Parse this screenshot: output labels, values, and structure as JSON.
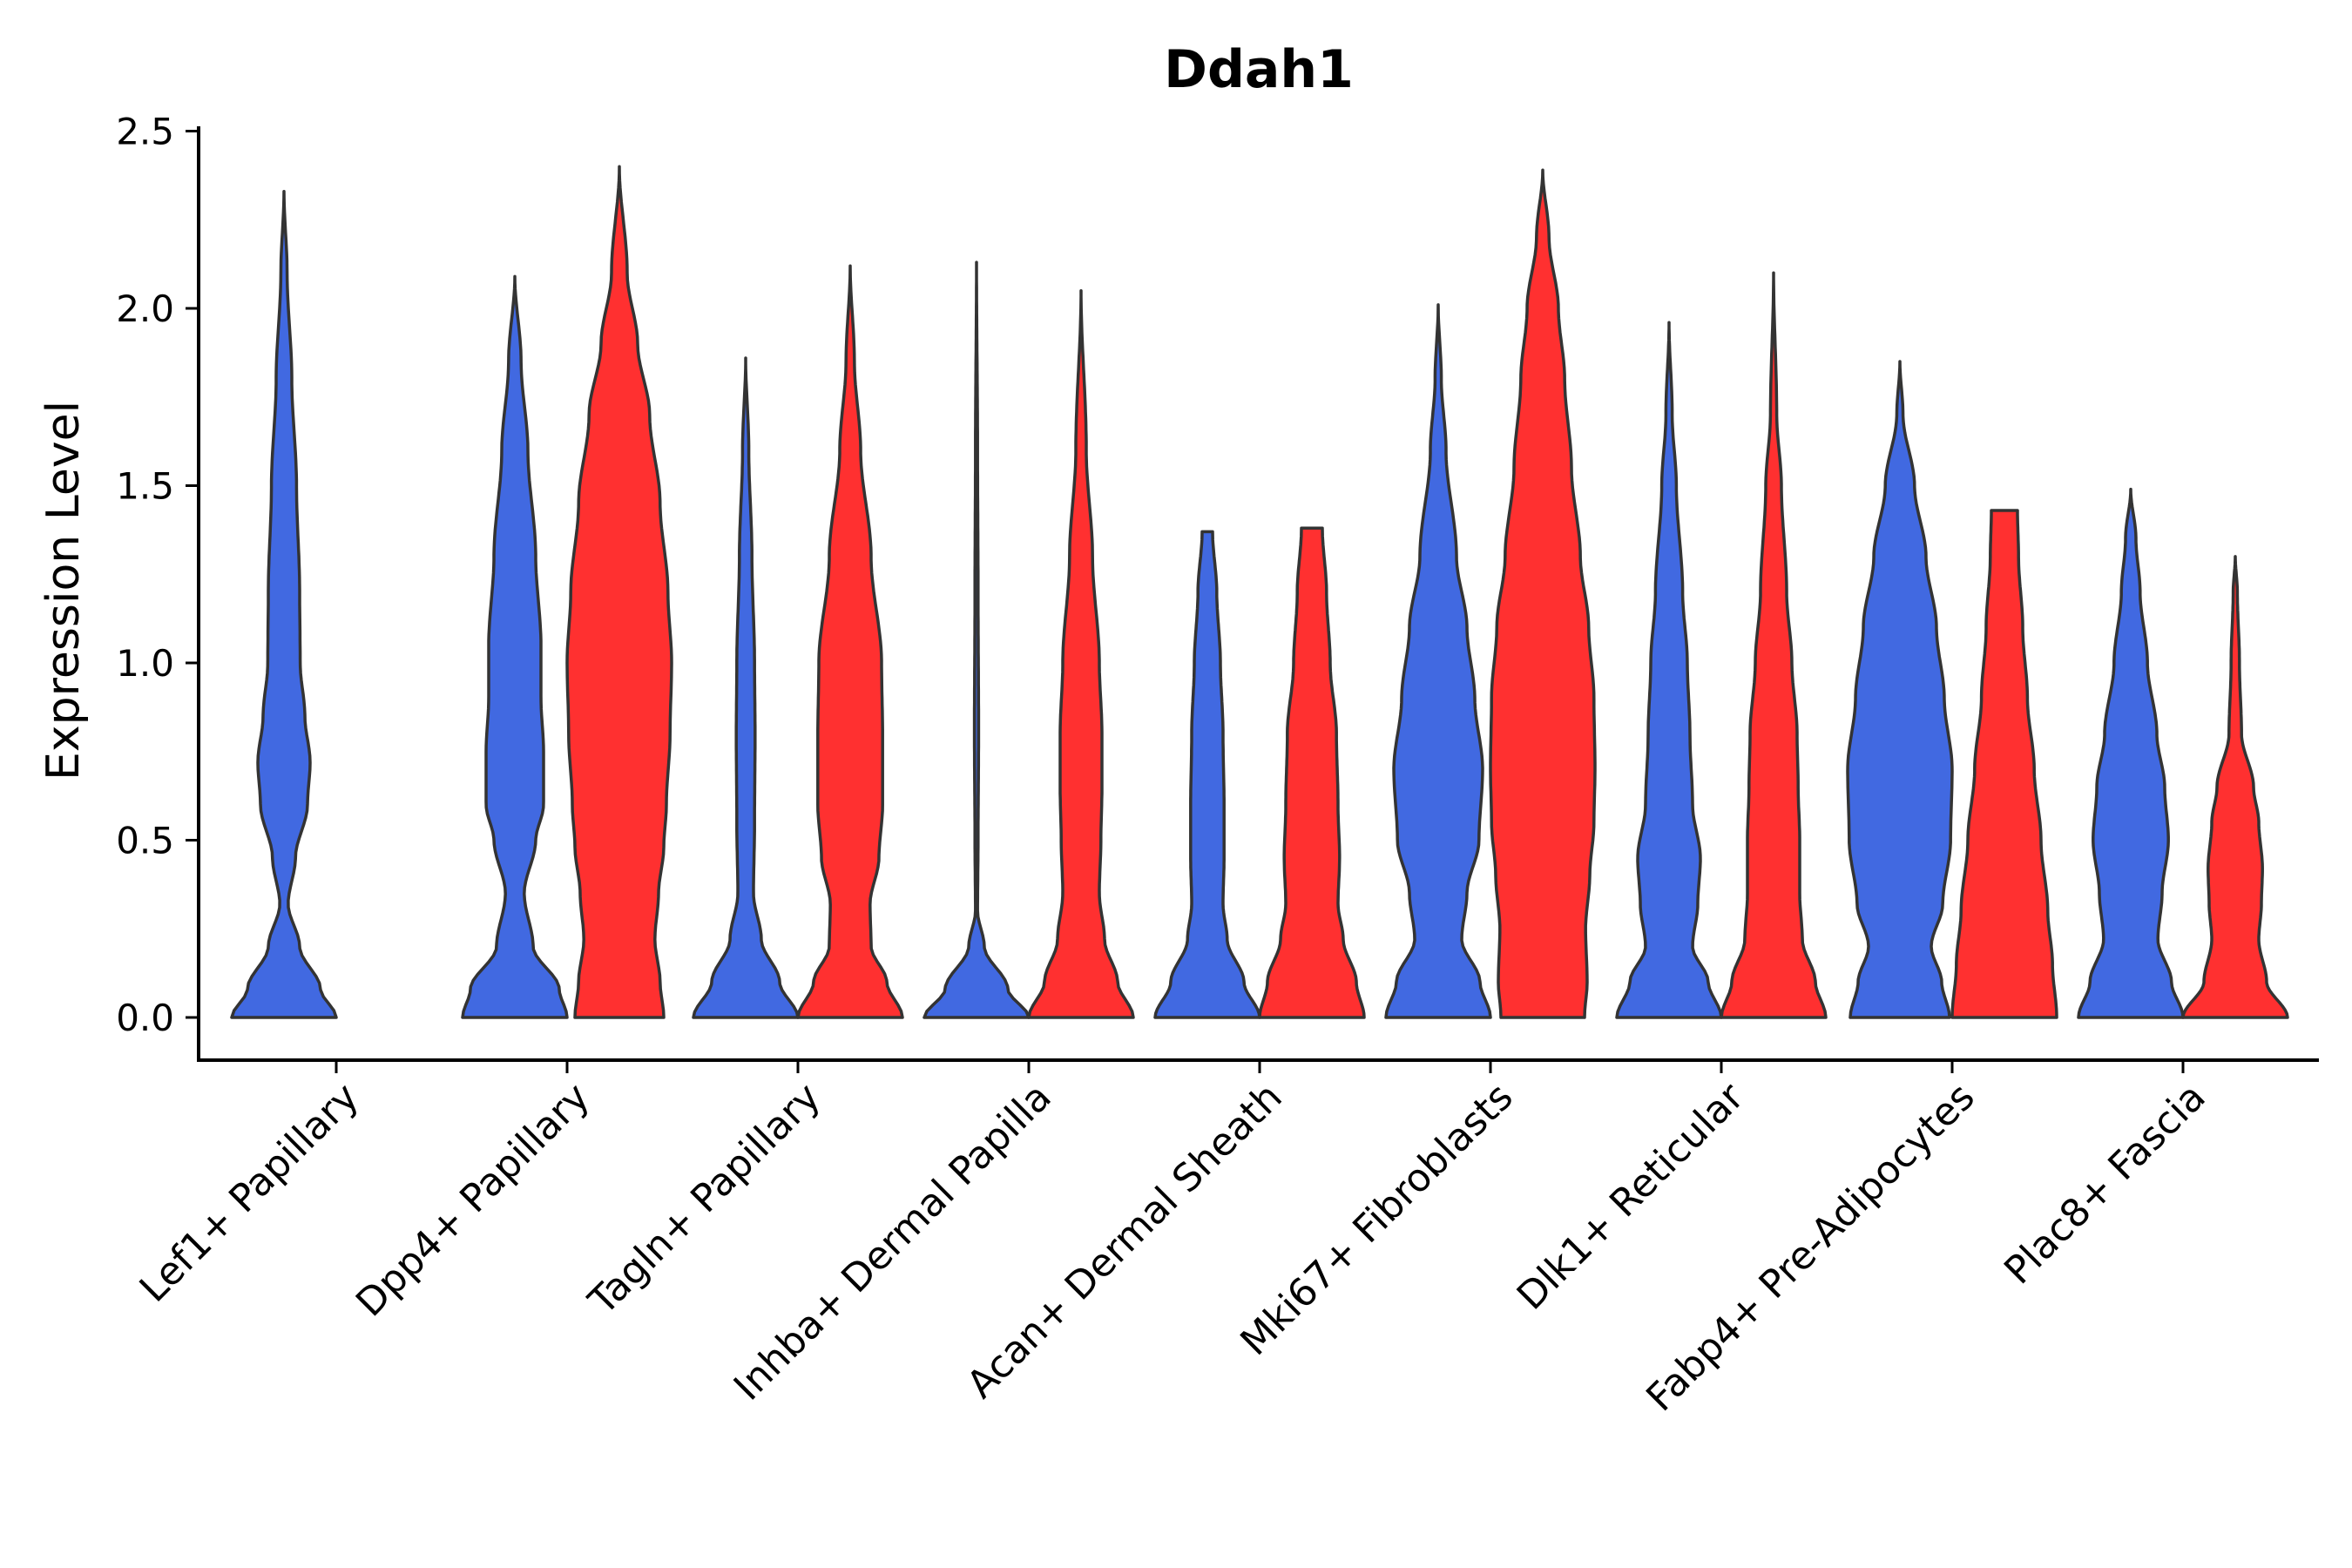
{
  "chart_data": {
    "type": "violin",
    "title": "Ddah1",
    "xlabel": "",
    "ylabel": "Expression Level",
    "ylim": [
      -0.12,
      2.5
    ],
    "yticks": [
      0.0,
      0.5,
      1.0,
      1.5,
      2.0,
      2.5
    ],
    "ytick_labels": [
      "0.0",
      "0.5",
      "1.0",
      "1.5",
      "2.0",
      "2.5"
    ],
    "grid": false,
    "legend": "none",
    "colors": {
      "blue": "#4169E1",
      "red": "#FF3030",
      "outline": "#333333"
    },
    "categories": [
      "Lef1+ Papillary",
      "Dpp4+ Papillary",
      "Tagln+ Papillary",
      "Inhba+ Dermal Papilla",
      "Acan+ Dermal Sheath",
      "Mki67+ Fibroblasts",
      "Dlk1+ Reticular",
      "Fabp4+ Pre-Adipocytes",
      "Plac8+ Fascia"
    ],
    "violins": [
      {
        "category": "Lef1+ Papillary",
        "color": "blue",
        "max": 2.33,
        "profile": [
          [
            0,
            1
          ],
          [
            0.08,
            0.7
          ],
          [
            0.2,
            0.3
          ],
          [
            0.32,
            0.08
          ],
          [
            0.45,
            0.22
          ],
          [
            0.6,
            0.45
          ],
          [
            0.72,
            0.5
          ],
          [
            0.85,
            0.4
          ],
          [
            1.0,
            0.31
          ],
          [
            1.2,
            0.3
          ],
          [
            1.5,
            0.24
          ],
          [
            1.8,
            0.15
          ],
          [
            2.1,
            0.06
          ],
          [
            2.33,
            0
          ]
        ]
      },
      {
        "category": "Dpp4+ Papillary",
        "color": "blue",
        "max": 2.09,
        "profile": [
          [
            0,
            1
          ],
          [
            0.08,
            0.85
          ],
          [
            0.2,
            0.35
          ],
          [
            0.35,
            0.18
          ],
          [
            0.5,
            0.4
          ],
          [
            0.6,
            0.55
          ],
          [
            0.75,
            0.55
          ],
          [
            0.9,
            0.5
          ],
          [
            1.05,
            0.5
          ],
          [
            1.3,
            0.4
          ],
          [
            1.6,
            0.25
          ],
          [
            1.85,
            0.12
          ],
          [
            2.09,
            0
          ]
        ]
      },
      {
        "category": "Dpp4+ Papillary",
        "color": "red",
        "max": 2.4,
        "profile": [
          [
            0,
            0.85
          ],
          [
            0.1,
            0.78
          ],
          [
            0.22,
            0.68
          ],
          [
            0.35,
            0.75
          ],
          [
            0.48,
            0.85
          ],
          [
            0.6,
            0.9
          ],
          [
            0.8,
            0.97
          ],
          [
            1.0,
            1.0
          ],
          [
            1.2,
            0.93
          ],
          [
            1.45,
            0.78
          ],
          [
            1.7,
            0.58
          ],
          [
            1.9,
            0.35
          ],
          [
            2.1,
            0.15
          ],
          [
            2.4,
            0
          ]
        ]
      },
      {
        "category": "Tagln+ Papillary",
        "color": "blue",
        "max": 1.86,
        "profile": [
          [
            0,
            1
          ],
          [
            0.1,
            0.65
          ],
          [
            0.22,
            0.3
          ],
          [
            0.35,
            0.15
          ],
          [
            0.55,
            0.17
          ],
          [
            0.8,
            0.18
          ],
          [
            1.0,
            0.17
          ],
          [
            1.3,
            0.12
          ],
          [
            1.6,
            0.06
          ],
          [
            1.86,
            0
          ]
        ]
      },
      {
        "category": "Tagln+ Papillary",
        "color": "red",
        "max": 2.12,
        "profile": [
          [
            0,
            1
          ],
          [
            0.1,
            0.7
          ],
          [
            0.2,
            0.4
          ],
          [
            0.32,
            0.38
          ],
          [
            0.45,
            0.55
          ],
          [
            0.6,
            0.62
          ],
          [
            0.8,
            0.62
          ],
          [
            1.0,
            0.6
          ],
          [
            1.3,
            0.4
          ],
          [
            1.6,
            0.2
          ],
          [
            1.85,
            0.08
          ],
          [
            2.12,
            0
          ]
        ]
      },
      {
        "category": "Inhba+ Dermal Papilla",
        "color": "blue",
        "max": 2.13,
        "profile": [
          [
            0,
            1
          ],
          [
            0.08,
            0.6
          ],
          [
            0.2,
            0.15
          ],
          [
            0.3,
            0.02
          ],
          [
            0.5,
            0.03
          ],
          [
            0.8,
            0.04
          ],
          [
            1.2,
            0.03
          ],
          [
            1.6,
            0.02
          ],
          [
            2.13,
            0
          ]
        ]
      },
      {
        "category": "Inhba+ Dermal Papilla",
        "color": "red",
        "max": 2.05,
        "profile": [
          [
            0,
            1
          ],
          [
            0.1,
            0.7
          ],
          [
            0.22,
            0.45
          ],
          [
            0.35,
            0.35
          ],
          [
            0.5,
            0.38
          ],
          [
            0.65,
            0.4
          ],
          [
            0.8,
            0.4
          ],
          [
            1.0,
            0.35
          ],
          [
            1.3,
            0.22
          ],
          [
            1.6,
            0.1
          ],
          [
            2.05,
            0
          ]
        ]
      },
      {
        "category": "Acan+ Dermal Sheath",
        "color": "blue",
        "max": 1.37,
        "profile": [
          [
            0,
            1
          ],
          [
            0.1,
            0.7
          ],
          [
            0.22,
            0.38
          ],
          [
            0.32,
            0.3
          ],
          [
            0.45,
            0.32
          ],
          [
            0.6,
            0.32
          ],
          [
            0.8,
            0.3
          ],
          [
            1.0,
            0.25
          ],
          [
            1.2,
            0.18
          ],
          [
            1.37,
            0.1
          ]
        ]
      },
      {
        "category": "Acan+ Dermal Sheath",
        "color": "red",
        "max": 1.38,
        "profile": [
          [
            0,
            1
          ],
          [
            0.1,
            0.85
          ],
          [
            0.22,
            0.6
          ],
          [
            0.32,
            0.5
          ],
          [
            0.45,
            0.53
          ],
          [
            0.6,
            0.5
          ],
          [
            0.8,
            0.47
          ],
          [
            1.0,
            0.35
          ],
          [
            1.2,
            0.28
          ],
          [
            1.38,
            0.2
          ]
        ]
      },
      {
        "category": "Mki67+ Fibroblasts",
        "color": "blue",
        "max": 2.01,
        "profile": [
          [
            0,
            1
          ],
          [
            0.1,
            0.8
          ],
          [
            0.22,
            0.45
          ],
          [
            0.35,
            0.55
          ],
          [
            0.5,
            0.78
          ],
          [
            0.7,
            0.85
          ],
          [
            0.9,
            0.7
          ],
          [
            1.1,
            0.55
          ],
          [
            1.3,
            0.35
          ],
          [
            1.6,
            0.15
          ],
          [
            1.8,
            0.06
          ],
          [
            2.01,
            0
          ]
        ]
      },
      {
        "category": "Mki67+ Fibroblasts",
        "color": "red",
        "max": 2.39,
        "profile": [
          [
            0,
            0.8
          ],
          [
            0.1,
            0.85
          ],
          [
            0.25,
            0.82
          ],
          [
            0.4,
            0.9
          ],
          [
            0.55,
            0.98
          ],
          [
            0.7,
            1.0
          ],
          [
            0.9,
            0.98
          ],
          [
            1.1,
            0.88
          ],
          [
            1.3,
            0.72
          ],
          [
            1.55,
            0.55
          ],
          [
            1.8,
            0.42
          ],
          [
            2.0,
            0.3
          ],
          [
            2.2,
            0.12
          ],
          [
            2.39,
            0
          ]
        ]
      },
      {
        "category": "Dlk1+ Reticular",
        "color": "blue",
        "max": 1.96,
        "profile": [
          [
            0,
            1
          ],
          [
            0.1,
            0.75
          ],
          [
            0.2,
            0.45
          ],
          [
            0.32,
            0.55
          ],
          [
            0.45,
            0.6
          ],
          [
            0.6,
            0.45
          ],
          [
            0.8,
            0.4
          ],
          [
            1.0,
            0.35
          ],
          [
            1.2,
            0.26
          ],
          [
            1.5,
            0.14
          ],
          [
            1.7,
            0.06
          ],
          [
            1.96,
            0
          ]
        ]
      },
      {
        "category": "Dlk1+ Reticular",
        "color": "red",
        "max": 2.1,
        "profile": [
          [
            0,
            1
          ],
          [
            0.1,
            0.8
          ],
          [
            0.22,
            0.55
          ],
          [
            0.35,
            0.5
          ],
          [
            0.5,
            0.5
          ],
          [
            0.65,
            0.47
          ],
          [
            0.8,
            0.45
          ],
          [
            1.0,
            0.35
          ],
          [
            1.2,
            0.25
          ],
          [
            1.5,
            0.15
          ],
          [
            1.7,
            0.06
          ],
          [
            2.1,
            0
          ]
        ]
      },
      {
        "category": "Fabp4+ Pre-Adipocytes",
        "color": "blue",
        "max": 1.85,
        "profile": [
          [
            0,
            0.95
          ],
          [
            0.1,
            0.8
          ],
          [
            0.2,
            0.6
          ],
          [
            0.32,
            0.82
          ],
          [
            0.5,
            0.97
          ],
          [
            0.7,
            1.0
          ],
          [
            0.9,
            0.85
          ],
          [
            1.1,
            0.7
          ],
          [
            1.3,
            0.5
          ],
          [
            1.5,
            0.28
          ],
          [
            1.7,
            0.06
          ],
          [
            1.85,
            0
          ]
        ]
      },
      {
        "category": "Fabp4+ Pre-Adipocytes",
        "color": "red",
        "max": 1.43,
        "profile": [
          [
            0,
            1
          ],
          [
            0.15,
            0.92
          ],
          [
            0.3,
            0.83
          ],
          [
            0.5,
            0.7
          ],
          [
            0.7,
            0.57
          ],
          [
            0.9,
            0.44
          ],
          [
            1.1,
            0.35
          ],
          [
            1.3,
            0.27
          ],
          [
            1.43,
            0.25
          ]
        ]
      },
      {
        "category": "Plac8+ Fascia",
        "color": "blue",
        "max": 1.49,
        "profile": [
          [
            0,
            1
          ],
          [
            0.1,
            0.78
          ],
          [
            0.22,
            0.52
          ],
          [
            0.35,
            0.6
          ],
          [
            0.5,
            0.72
          ],
          [
            0.65,
            0.65
          ],
          [
            0.8,
            0.5
          ],
          [
            1.0,
            0.32
          ],
          [
            1.2,
            0.18
          ],
          [
            1.35,
            0.1
          ],
          [
            1.49,
            0
          ]
        ]
      },
      {
        "category": "Plac8+ Fascia",
        "color": "red",
        "max": 1.3,
        "profile": [
          [
            0,
            1
          ],
          [
            0.1,
            0.6
          ],
          [
            0.22,
            0.45
          ],
          [
            0.32,
            0.5
          ],
          [
            0.42,
            0.52
          ],
          [
            0.55,
            0.45
          ],
          [
            0.65,
            0.35
          ],
          [
            0.8,
            0.12
          ],
          [
            1.0,
            0.08
          ],
          [
            1.2,
            0.04
          ],
          [
            1.3,
            0
          ]
        ]
      }
    ]
  }
}
